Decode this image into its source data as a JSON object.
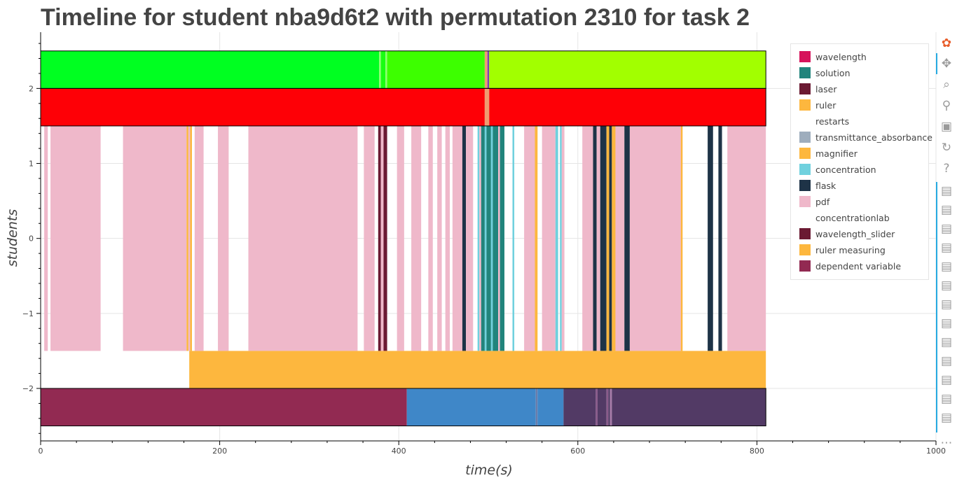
{
  "title": "Timeline for student nba9d6t2 with permutation 2310 for task 2",
  "legend": [
    {
      "label": "wavelength",
      "color": "#d6135b"
    },
    {
      "label": "solution",
      "color": "#21847c"
    },
    {
      "label": "laser",
      "color": "#6b1a33"
    },
    {
      "label": "ruler",
      "color": "#fdb73e"
    },
    {
      "label": "restarts",
      "color": "#ffffff"
    },
    {
      "label": "transmittance_absorbance",
      "color": "#9eadbd"
    },
    {
      "label": "magnifier",
      "color": "#fdb73e"
    },
    {
      "label": "concentration",
      "color": "#70d1de"
    },
    {
      "label": "flask",
      "color": "#1e3347"
    },
    {
      "label": "pdf",
      "color": "#efb8ca"
    },
    {
      "label": "concentrationlab",
      "color": "#ffffff"
    },
    {
      "label": "wavelength_slider",
      "color": "#6b1a33"
    },
    {
      "label": "ruler measuring",
      "color": "#fdb73e"
    },
    {
      "label": "dependent variable",
      "color": "#922a52"
    }
  ],
  "toolbar": {
    "logo": "bokeh-logo-icon",
    "tools": [
      "pan-icon",
      "box-zoom-icon",
      "wheel-zoom-icon",
      "save-icon",
      "reset-icon",
      "help-icon"
    ],
    "hover_count": 13,
    "more": "more-icon"
  },
  "chart_data": {
    "type": "bar",
    "orientation": "horizontal-timeline",
    "title": "Timeline for student nba9d6t2 with permutation 2310 for task 2",
    "xlabel": "time(s)",
    "ylabel": "students",
    "xlim": [
      0,
      1000
    ],
    "ylim": [
      -2.7,
      2.75
    ],
    "x_ticks": [
      0,
      200,
      400,
      600,
      800,
      1000
    ],
    "y_ticks": [
      -2,
      -1,
      0,
      1,
      2
    ],
    "y_tick_labels": [
      "−2",
      "−1",
      "0",
      "1",
      "2"
    ],
    "grid": true,
    "legend_position": "right",
    "bands": [
      {
        "y": [
          2,
          2.5
        ],
        "segments": [
          {
            "start": 0,
            "end": 378,
            "color": "#00ff21"
          },
          {
            "start": 378,
            "end": 380,
            "color": "#8bff6f"
          },
          {
            "start": 380,
            "end": 385,
            "color": "#19ff12"
          },
          {
            "start": 385,
            "end": 387,
            "color": "#8bff6f"
          },
          {
            "start": 387,
            "end": 496,
            "color": "#3dff00"
          },
          {
            "start": 496,
            "end": 499,
            "color": "#f09b70"
          },
          {
            "start": 499,
            "end": 501,
            "color": "#7a3fb0"
          },
          {
            "start": 501,
            "end": 810,
            "color": "#a2ff00"
          }
        ]
      },
      {
        "y": [
          1.5,
          2
        ],
        "segments": [
          {
            "start": 0,
            "end": 496,
            "color": "#fe0006"
          },
          {
            "start": 496,
            "end": 501,
            "color": "#f09b70"
          },
          {
            "start": 501,
            "end": 810,
            "color": "#fe0006"
          }
        ]
      },
      {
        "y": [
          -1.5,
          1.5
        ],
        "segments": [
          {
            "start": 4,
            "end": 8,
            "color": "#efb8ca"
          },
          {
            "start": 11,
            "end": 67,
            "color": "#efb8ca"
          },
          {
            "start": 92,
            "end": 163,
            "color": "#efb8ca"
          },
          {
            "start": 163,
            "end": 165,
            "color": "#fdb73e"
          },
          {
            "start": 165,
            "end": 167,
            "color": "#efb8ca"
          },
          {
            "start": 167,
            "end": 169,
            "color": "#fdb73e"
          },
          {
            "start": 169,
            "end": 172,
            "color": "#ffffff"
          },
          {
            "start": 172,
            "end": 182,
            "color": "#efb8ca"
          },
          {
            "start": 198,
            "end": 210,
            "color": "#efb8ca"
          },
          {
            "start": 232,
            "end": 354,
            "color": "#efb8ca"
          },
          {
            "start": 361,
            "end": 373,
            "color": "#efb8ca"
          },
          {
            "start": 377,
            "end": 380,
            "color": "#6b1a33"
          },
          {
            "start": 380,
            "end": 383,
            "color": "#efb8ca"
          },
          {
            "start": 383,
            "end": 387,
            "color": "#6b1a33"
          },
          {
            "start": 398,
            "end": 406,
            "color": "#efb8ca"
          },
          {
            "start": 414,
            "end": 425,
            "color": "#efb8ca"
          },
          {
            "start": 433,
            "end": 438,
            "color": "#efb8ca"
          },
          {
            "start": 443,
            "end": 448,
            "color": "#efb8ca"
          },
          {
            "start": 452,
            "end": 457,
            "color": "#efb8ca"
          },
          {
            "start": 460,
            "end": 471,
            "color": "#efb8ca"
          },
          {
            "start": 471,
            "end": 475,
            "color": "#1e3347"
          },
          {
            "start": 475,
            "end": 483,
            "color": "#efb8ca"
          },
          {
            "start": 488,
            "end": 490,
            "color": "#70d1de"
          },
          {
            "start": 490,
            "end": 492,
            "color": "#efb8ca"
          },
          {
            "start": 492,
            "end": 496,
            "color": "#21847c"
          },
          {
            "start": 496,
            "end": 498,
            "color": "#70d1de"
          },
          {
            "start": 498,
            "end": 503,
            "color": "#21847c"
          },
          {
            "start": 503,
            "end": 505,
            "color": "#70d1de"
          },
          {
            "start": 505,
            "end": 511,
            "color": "#21847c"
          },
          {
            "start": 511,
            "end": 513,
            "color": "#efb8ca"
          },
          {
            "start": 513,
            "end": 518,
            "color": "#21847c"
          },
          {
            "start": 527,
            "end": 529,
            "color": "#70d1de"
          },
          {
            "start": 540,
            "end": 552,
            "color": "#efb8ca"
          },
          {
            "start": 552,
            "end": 555,
            "color": "#fdb73e"
          },
          {
            "start": 560,
            "end": 575,
            "color": "#efb8ca"
          },
          {
            "start": 575,
            "end": 578,
            "color": "#70d1de"
          },
          {
            "start": 580,
            "end": 582,
            "color": "#70d1de"
          },
          {
            "start": 582,
            "end": 585,
            "color": "#efb8ca"
          },
          {
            "start": 605,
            "end": 617,
            "color": "#efb8ca"
          },
          {
            "start": 617,
            "end": 621,
            "color": "#1e3347"
          },
          {
            "start": 621,
            "end": 625,
            "color": "#efb8ca"
          },
          {
            "start": 625,
            "end": 632,
            "color": "#1e3347"
          },
          {
            "start": 632,
            "end": 635,
            "color": "#fdb73e"
          },
          {
            "start": 635,
            "end": 638,
            "color": "#1e3347"
          },
          {
            "start": 638,
            "end": 642,
            "color": "#fdb73e"
          },
          {
            "start": 642,
            "end": 652,
            "color": "#efb8ca"
          },
          {
            "start": 652,
            "end": 658,
            "color": "#1e3347"
          },
          {
            "start": 658,
            "end": 660,
            "color": "#efb8ca"
          },
          {
            "start": 660,
            "end": 715,
            "color": "#efb8ca"
          },
          {
            "start": 715,
            "end": 717,
            "color": "#fdb73e"
          },
          {
            "start": 745,
            "end": 751,
            "color": "#1e3347"
          },
          {
            "start": 757,
            "end": 761,
            "color": "#1e3347"
          },
          {
            "start": 767,
            "end": 810,
            "color": "#efb8ca"
          }
        ]
      },
      {
        "y": [
          -2,
          -1.5
        ],
        "segments": [
          {
            "start": 166,
            "end": 810,
            "color": "#fdb73e"
          }
        ]
      },
      {
        "y": [
          -2.5,
          -2
        ],
        "segments": [
          {
            "start": 0,
            "end": 409,
            "color": "#922a52"
          },
          {
            "start": 409,
            "end": 553,
            "color": "#3f87c8"
          },
          {
            "start": 553,
            "end": 555,
            "color": "#6a7caa"
          },
          {
            "start": 555,
            "end": 584,
            "color": "#3f87c8"
          },
          {
            "start": 584,
            "end": 620,
            "color": "#523a65"
          },
          {
            "start": 620,
            "end": 622,
            "color": "#8a5a8a"
          },
          {
            "start": 622,
            "end": 632,
            "color": "#523a65"
          },
          {
            "start": 632,
            "end": 634,
            "color": "#8a5a8a"
          },
          {
            "start": 634,
            "end": 636,
            "color": "#523a65"
          },
          {
            "start": 636,
            "end": 638,
            "color": "#a77aa8"
          },
          {
            "start": 638,
            "end": 810,
            "color": "#523a65"
          }
        ]
      }
    ],
    "band_outlines": [
      {
        "start": 0,
        "end": 810,
        "y": [
          2,
          2.5
        ]
      },
      {
        "start": 0,
        "end": 810,
        "y": [
          1.5,
          2
        ]
      },
      {
        "start": 0,
        "end": 810,
        "y": [
          -2.5,
          -2
        ]
      }
    ]
  }
}
